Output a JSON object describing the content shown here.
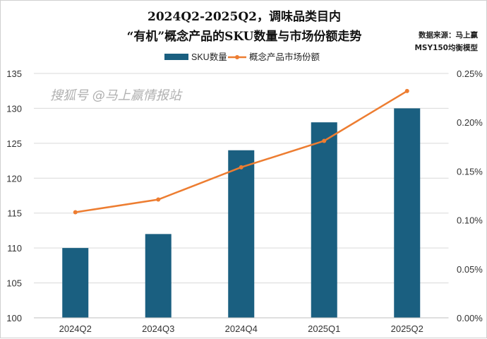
{
  "chart_data": {
    "type": "bar+line",
    "title_line1": "2024Q2-2025Q2，调味品类目内",
    "title_line2": "“有机”概念产品的SKU数量与市场份额走势",
    "source_line1": "数据来源：马上赢",
    "source_line2": "MSY150均衡模型",
    "categories": [
      "2024Q2",
      "2024Q3",
      "2024Q4",
      "2025Q1",
      "2025Q2"
    ],
    "series": [
      {
        "name": "SKU数量",
        "type": "bar",
        "axis": "left",
        "color": "#1a5f80",
        "values": [
          110,
          112,
          124,
          128,
          130
        ]
      },
      {
        "name": "概念产品市场份额",
        "type": "line",
        "axis": "right",
        "color": "#ed7d31",
        "values": [
          0.108,
          0.121,
          0.154,
          0.181,
          0.232
        ]
      }
    ],
    "left_axis": {
      "ylim": [
        100,
        135
      ],
      "ticks": [
        "100",
        "105",
        "110",
        "115",
        "120",
        "125",
        "130",
        "135"
      ]
    },
    "right_axis": {
      "ylim": [
        0,
        0.25
      ],
      "ticks": [
        "0.00%",
        "0.05%",
        "0.10%",
        "0.15%",
        "0.20%",
        "0.25%"
      ]
    },
    "legend_position": "top",
    "grid": true
  },
  "watermark": "搜狐号 @马上赢情报站"
}
